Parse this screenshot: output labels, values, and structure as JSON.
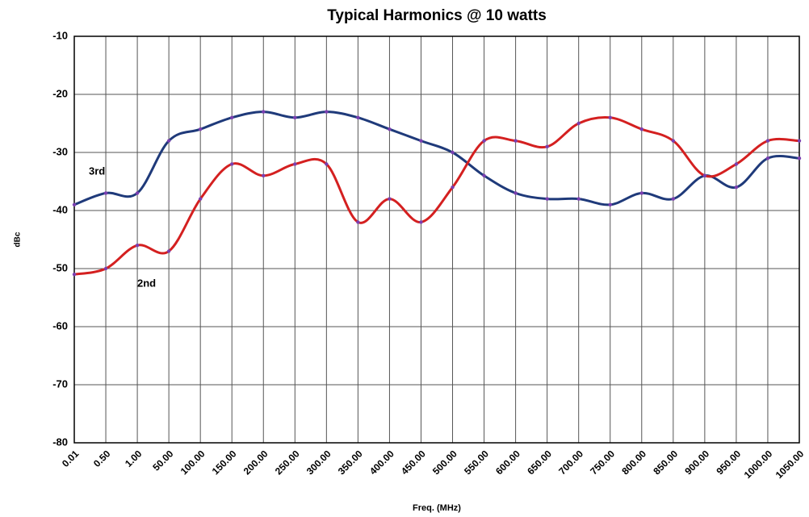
{
  "chart_data": {
    "type": "line",
    "title": "Typical Harmonics @ 10 watts",
    "x_label": "Freq. (MHz)",
    "y_label": "dBc",
    "categories": [
      "0.01",
      "0.50",
      "1.00",
      "50.00",
      "100.00",
      "150.00",
      "200.00",
      "250.00",
      "300.00",
      "350.00",
      "400.00",
      "450.00",
      "500.00",
      "550.00",
      "600.00",
      "650.00",
      "700.00",
      "750.00",
      "800.00",
      "850.00",
      "900.00",
      "950.00",
      "1000.00",
      "1050.00"
    ],
    "series": [
      {
        "name": "3rd",
        "color": "#1f3a7a",
        "values": [
          -39,
          -37,
          -37,
          -28,
          -26,
          -24,
          -23,
          -24,
          -23,
          -24,
          -26,
          -28,
          -30,
          -34,
          -37,
          -38,
          -38,
          -39,
          -37,
          -38,
          -34,
          -36,
          -31,
          -31
        ]
      },
      {
        "name": "2nd",
        "color": "#d42020",
        "values": [
          -51,
          -50,
          -46,
          -47,
          -38,
          -32,
          -34,
          -32,
          -32,
          -42,
          -38,
          -42,
          -36,
          -28,
          -28,
          -29,
          -25,
          -24,
          -26,
          -28,
          -34,
          -32,
          -28,
          -28
        ]
      }
    ],
    "marker_color": "#7a3fb0",
    "ylim": [
      -80,
      -10
    ],
    "yticks": [
      -80,
      -70,
      -60,
      -50,
      -40,
      -30,
      -20,
      -10
    ],
    "grid": true
  }
}
